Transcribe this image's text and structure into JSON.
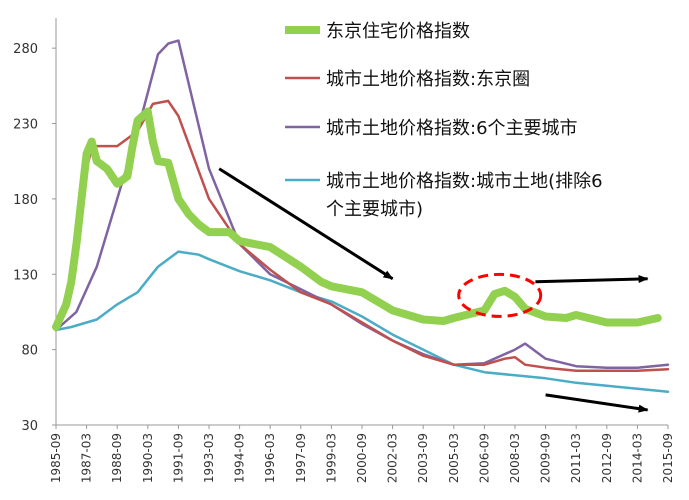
{
  "chart_data": {
    "type": "line",
    "title": "",
    "xlabel": "",
    "ylabel": "",
    "ylim": [
      30,
      300
    ],
    "yticks": [
      30,
      80,
      130,
      180,
      230,
      280
    ],
    "xticks": [
      "1985-09",
      "1987-03",
      "1988-09",
      "1990-03",
      "1991-09",
      "1993-03",
      "1994-09",
      "1996-03",
      "1997-09",
      "1999-03",
      "2000-09",
      "2002-03",
      "2003-09",
      "2005-03",
      "2006-09",
      "2008-03",
      "2009-09",
      "2011-03",
      "2012-09",
      "2014-03",
      "2015-09"
    ],
    "grid": false,
    "legend_position": "top-right",
    "series": [
      {
        "name": "东京住宅价格指数",
        "color": "#92d050",
        "x": [
          "1985-09",
          "1986-03",
          "1986-06",
          "1986-09",
          "1987-03",
          "1987-06",
          "1987-09",
          "1988-03",
          "1988-09",
          "1989-03",
          "1989-06",
          "1989-09",
          "1990-03",
          "1990-06",
          "1990-09",
          "1991-03",
          "1991-09",
          "1992-03",
          "1992-09",
          "1993-03",
          "1994-03",
          "1994-09",
          "1996-03",
          "1997-09",
          "1998-09",
          "1999-03",
          "2000-09",
          "2002-03",
          "2003-09",
          "2004-09",
          "2005-03",
          "2006-09",
          "2007-03",
          "2007-09",
          "2008-03",
          "2008-09",
          "2009-09",
          "2010-09",
          "2011-03",
          "2012-09",
          "2014-03",
          "2015-03"
        ],
        "values": [
          95,
          110,
          125,
          150,
          210,
          218,
          205,
          200,
          190,
          195,
          215,
          232,
          238,
          218,
          205,
          204,
          180,
          170,
          163,
          158,
          158,
          152,
          148,
          135,
          125,
          122,
          118,
          106,
          100,
          99,
          101,
          106,
          117,
          119,
          115,
          107,
          102,
          101,
          103,
          98,
          98,
          101
        ]
      },
      {
        "name": "城市土地价格指数:东京圈",
        "color": "#c0504d",
        "x": [
          "1985-09",
          "1986-06",
          "1987-03",
          "1987-06",
          "1987-09",
          "1988-09",
          "1989-09",
          "1990-06",
          "1991-03",
          "1991-09",
          "1993-03",
          "1994-09",
          "1996-03",
          "1997-09",
          "1999-03",
          "2000-09",
          "2002-03",
          "2003-09",
          "2005-03",
          "2006-09",
          "2007-09",
          "2008-03",
          "2008-09",
          "2009-09",
          "2011-03",
          "2012-09",
          "2014-03",
          "2015-09"
        ],
        "values": [
          93,
          120,
          200,
          213,
          215,
          215,
          225,
          243,
          245,
          235,
          180,
          150,
          133,
          118,
          110,
          98,
          86,
          76,
          70,
          70,
          74,
          75,
          70,
          68,
          66,
          66,
          66,
          67
        ]
      },
      {
        "name": "城市土地价格指数:6个主要城市",
        "color": "#8064a2",
        "x": [
          "1985-09",
          "1986-09",
          "1987-09",
          "1988-09",
          "1989-09",
          "1990-09",
          "1991-03",
          "1991-09",
          "1993-03",
          "1994-09",
          "1996-03",
          "1997-09",
          "1999-03",
          "2000-09",
          "2002-03",
          "2003-09",
          "2005-03",
          "2006-09",
          "2008-03",
          "2008-09",
          "2009-09",
          "2011-03",
          "2012-09",
          "2014-03",
          "2015-09"
        ],
        "values": [
          93,
          105,
          135,
          180,
          225,
          276,
          283,
          285,
          200,
          150,
          130,
          120,
          110,
          97,
          86,
          77,
          70,
          71,
          80,
          84,
          74,
          69,
          68,
          68,
          70
        ]
      },
      {
        "name": "城市土地价格指数:城市土地(排除6个主要城市)",
        "color": "#4bacc6",
        "x": [
          "1985-09",
          "1986-06",
          "1987-09",
          "1988-09",
          "1989-09",
          "1990-09",
          "1991-09",
          "1992-09",
          "1993-03",
          "1994-09",
          "1996-03",
          "1997-09",
          "1999-03",
          "2000-09",
          "2002-03",
          "2003-09",
          "2005-03",
          "2006-09",
          "2008-03",
          "2009-09",
          "2011-03",
          "2012-09",
          "2014-03",
          "2015-09"
        ],
        "values": [
          93,
          95,
          100,
          110,
          118,
          135,
          145,
          143,
          140,
          132,
          126,
          118,
          112,
          102,
          90,
          80,
          70,
          65,
          63,
          61,
          58,
          56,
          54,
          52
        ]
      }
    ],
    "annotations": [
      {
        "type": "arrow",
        "from": [
          "1993-09",
          200
        ],
        "to": [
          "2002-03",
          127
        ],
        "color": "#000000"
      },
      {
        "type": "arrow",
        "from": [
          "2009-03",
          125
        ],
        "to": [
          "2014-09",
          127
        ],
        "color": "#000000"
      },
      {
        "type": "arrow",
        "from": [
          "2009-09",
          50
        ],
        "to": [
          "2014-09",
          40
        ],
        "color": "#000000"
      },
      {
        "type": "dashed-ellipse",
        "center": [
          "2007-06",
          116
        ],
        "color": "#ff0000"
      }
    ]
  }
}
